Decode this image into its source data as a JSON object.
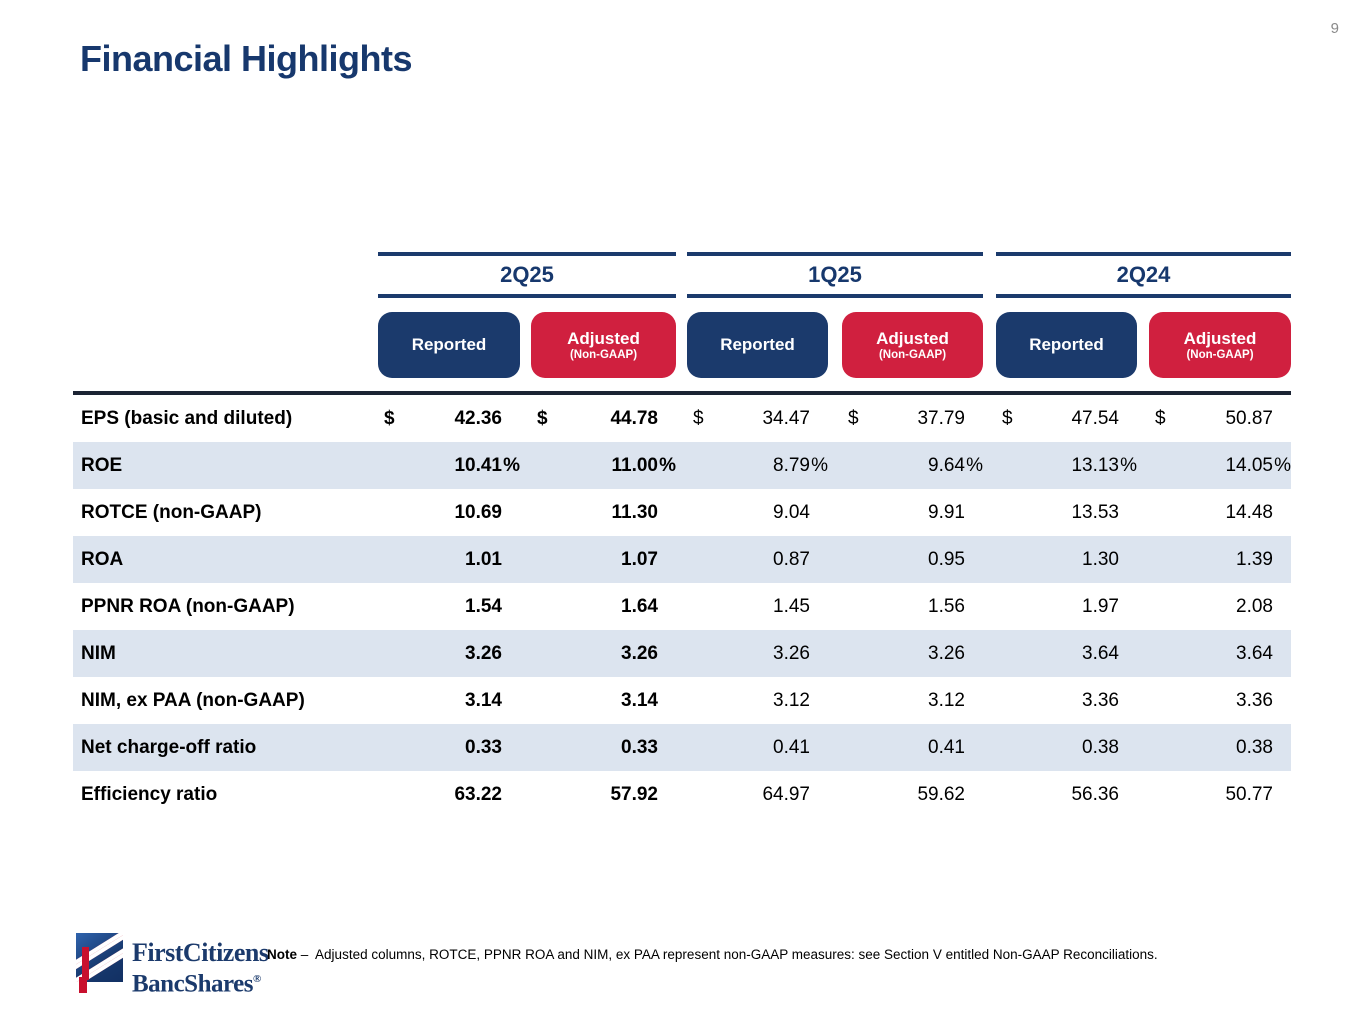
{
  "page_number": "9",
  "title": "Financial Highlights",
  "colors": {
    "navy": "#17386D",
    "pill_navy": "#1B3A6C",
    "pill_red": "#D0203F",
    "row_shade": "#DCE4EF",
    "table_top_border": "#1B2433",
    "page_number_gray": "#8A8A8A",
    "logo_red": "#C8102E"
  },
  "table": {
    "groups": [
      {
        "label": "2Q25",
        "columns": [
          {
            "label": "Reported"
          },
          {
            "label": "Adjusted",
            "sublabel": "(Non-GAAP)"
          }
        ]
      },
      {
        "label": "1Q25",
        "columns": [
          {
            "label": "Reported"
          },
          {
            "label": "Adjusted",
            "sublabel": "(Non-GAAP)"
          }
        ]
      },
      {
        "label": "2Q24",
        "columns": [
          {
            "label": "Reported"
          },
          {
            "label": "Adjusted",
            "sublabel": "(Non-GAAP)"
          }
        ]
      }
    ],
    "rows": [
      {
        "label": "EPS (basic and diluted)",
        "currency": "$",
        "suffix": "",
        "values": [
          "42.36",
          "44.78",
          "34.47",
          "37.79",
          "47.54",
          "50.87"
        ]
      },
      {
        "label": "ROE",
        "currency": "",
        "suffix": "%",
        "values": [
          "10.41",
          "11.00",
          "8.79",
          "9.64",
          "13.13",
          "14.05"
        ]
      },
      {
        "label": "ROTCE (non-GAAP)",
        "currency": "",
        "suffix": "",
        "values": [
          "10.69",
          "11.30",
          "9.04",
          "9.91",
          "13.53",
          "14.48"
        ]
      },
      {
        "label": "ROA",
        "currency": "",
        "suffix": "",
        "values": [
          "1.01",
          "1.07",
          "0.87",
          "0.95",
          "1.30",
          "1.39"
        ]
      },
      {
        "label": "PPNR ROA (non-GAAP)",
        "currency": "",
        "suffix": "",
        "values": [
          "1.54",
          "1.64",
          "1.45",
          "1.56",
          "1.97",
          "2.08"
        ]
      },
      {
        "label": "NIM",
        "currency": "",
        "suffix": "",
        "values": [
          "3.26",
          "3.26",
          "3.26",
          "3.26",
          "3.64",
          "3.64"
        ]
      },
      {
        "label": "NIM, ex PAA (non-GAAP)",
        "currency": "",
        "suffix": "",
        "values": [
          "3.14",
          "3.14",
          "3.12",
          "3.12",
          "3.36",
          "3.36"
        ]
      },
      {
        "label": "Net charge-off ratio",
        "currency": "",
        "suffix": "",
        "values": [
          "0.33",
          "0.33",
          "0.41",
          "0.41",
          "0.38",
          "0.38"
        ]
      },
      {
        "label": "Efficiency ratio",
        "currency": "",
        "suffix": "",
        "values": [
          "63.22",
          "57.92",
          "64.97",
          "59.62",
          "56.36",
          "50.77"
        ]
      }
    ]
  },
  "footer": {
    "logo_line1": "FirstCitizens",
    "logo_line2": "BancShares",
    "logo_reg": "®",
    "note_label": "Note",
    "note_dash": "–",
    "note_text": "Adjusted columns, ROTCE, PPNR ROA and NIM, ex PAA represent non-GAAP measures: see Section V entitled Non-GAAP Reconciliations."
  }
}
